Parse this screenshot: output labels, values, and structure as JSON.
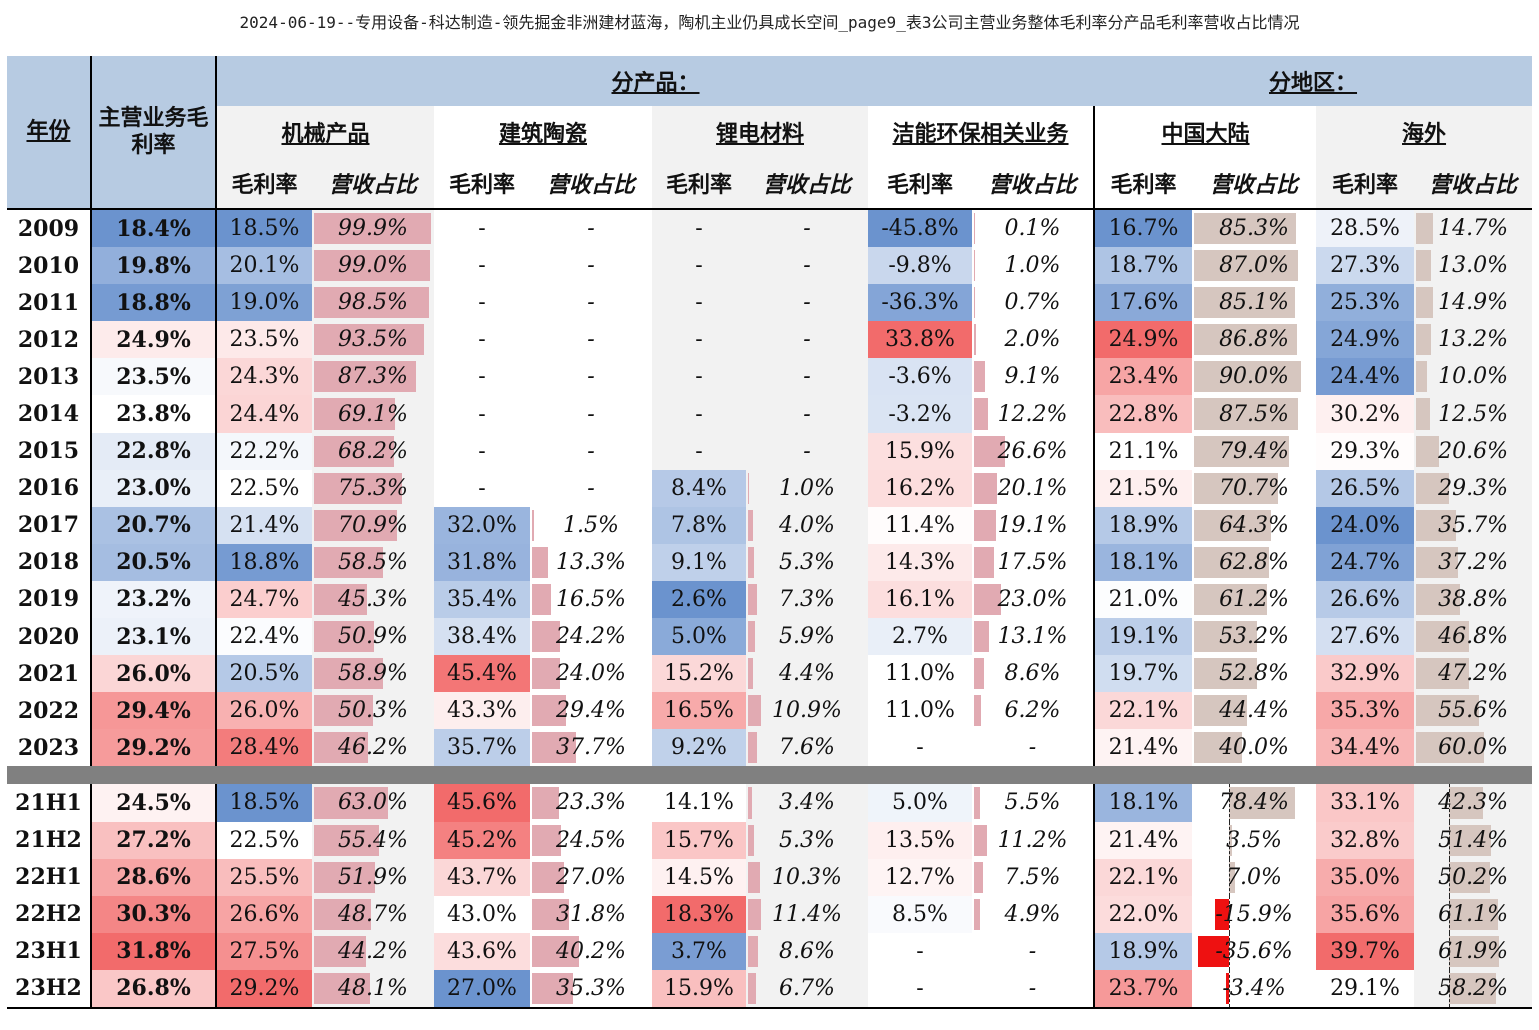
{
  "title": "2024-06-19--专用设备-科达制造-领先掘金非洲建材蓝海，陶机主业仍具成长空间_page9_表3公司主营业务整体毛利率分产品毛利率营收占比情况",
  "headers": {
    "year": "年份",
    "main_margin": "主营业务毛利率",
    "by_product": "分产品：",
    "by_region": "分地区：",
    "segments": [
      "机械产品",
      "建筑陶瓷",
      "锂电材料",
      "洁能环保相关业务",
      "中国大陆",
      "海外"
    ],
    "gross_margin": "毛利率",
    "revenue_share": "营收占比"
  },
  "columns": [
    "main",
    "mach_gm",
    "mach_sh",
    "cer_gm",
    "cer_sh",
    "li_gm",
    "li_sh",
    "env_gm",
    "env_sh",
    "cn_gm",
    "cn_sh",
    "os_gm",
    "os_sh"
  ],
  "annual_rows": [
    {
      "year": "2009",
      "main": "18.4%",
      "mach_gm": "18.5%",
      "mach_sh": "99.9%",
      "cer_gm": "-",
      "cer_sh": "-",
      "li_gm": "-",
      "li_sh": "-",
      "env_gm": "-45.8%",
      "env_sh": "0.1%",
      "cn_gm": "16.7%",
      "cn_sh": "85.3%",
      "os_gm": "28.5%",
      "os_sh": "14.7%"
    },
    {
      "year": "2010",
      "main": "19.8%",
      "mach_gm": "20.1%",
      "mach_sh": "99.0%",
      "cer_gm": "-",
      "cer_sh": "-",
      "li_gm": "-",
      "li_sh": "-",
      "env_gm": "-9.8%",
      "env_sh": "1.0%",
      "cn_gm": "18.7%",
      "cn_sh": "87.0%",
      "os_gm": "27.3%",
      "os_sh": "13.0%"
    },
    {
      "year": "2011",
      "main": "18.8%",
      "mach_gm": "19.0%",
      "mach_sh": "98.5%",
      "cer_gm": "-",
      "cer_sh": "-",
      "li_gm": "-",
      "li_sh": "-",
      "env_gm": "-36.3%",
      "env_sh": "0.7%",
      "cn_gm": "17.6%",
      "cn_sh": "85.1%",
      "os_gm": "25.3%",
      "os_sh": "14.9%"
    },
    {
      "year": "2012",
      "main": "24.9%",
      "mach_gm": "23.5%",
      "mach_sh": "93.5%",
      "cer_gm": "-",
      "cer_sh": "-",
      "li_gm": "-",
      "li_sh": "-",
      "env_gm": "33.8%",
      "env_sh": "2.0%",
      "cn_gm": "24.9%",
      "cn_sh": "86.8%",
      "os_gm": "24.9%",
      "os_sh": "13.2%"
    },
    {
      "year": "2013",
      "main": "23.5%",
      "mach_gm": "24.3%",
      "mach_sh": "87.3%",
      "cer_gm": "-",
      "cer_sh": "-",
      "li_gm": "-",
      "li_sh": "-",
      "env_gm": "-3.6%",
      "env_sh": "9.1%",
      "cn_gm": "23.4%",
      "cn_sh": "90.0%",
      "os_gm": "24.4%",
      "os_sh": "10.0%"
    },
    {
      "year": "2014",
      "main": "23.8%",
      "mach_gm": "24.4%",
      "mach_sh": "69.1%",
      "cer_gm": "-",
      "cer_sh": "-",
      "li_gm": "-",
      "li_sh": "-",
      "env_gm": "-3.2%",
      "env_sh": "12.2%",
      "cn_gm": "22.8%",
      "cn_sh": "87.5%",
      "os_gm": "30.2%",
      "os_sh": "12.5%"
    },
    {
      "year": "2015",
      "main": "22.8%",
      "mach_gm": "22.2%",
      "mach_sh": "68.2%",
      "cer_gm": "-",
      "cer_sh": "-",
      "li_gm": "-",
      "li_sh": "-",
      "env_gm": "15.9%",
      "env_sh": "26.6%",
      "cn_gm": "21.1%",
      "cn_sh": "79.4%",
      "os_gm": "29.3%",
      "os_sh": "20.6%"
    },
    {
      "year": "2016",
      "main": "23.0%",
      "mach_gm": "22.5%",
      "mach_sh": "75.3%",
      "cer_gm": "-",
      "cer_sh": "-",
      "li_gm": "8.4%",
      "li_sh": "1.0%",
      "env_gm": "16.2%",
      "env_sh": "20.1%",
      "cn_gm": "21.5%",
      "cn_sh": "70.7%",
      "os_gm": "26.5%",
      "os_sh": "29.3%"
    },
    {
      "year": "2017",
      "main": "20.7%",
      "mach_gm": "21.4%",
      "mach_sh": "70.9%",
      "cer_gm": "32.0%",
      "cer_sh": "1.5%",
      "li_gm": "7.8%",
      "li_sh": "4.0%",
      "env_gm": "11.4%",
      "env_sh": "19.1%",
      "cn_gm": "18.9%",
      "cn_sh": "64.3%",
      "os_gm": "24.0%",
      "os_sh": "35.7%"
    },
    {
      "year": "2018",
      "main": "20.5%",
      "mach_gm": "18.8%",
      "mach_sh": "58.5%",
      "cer_gm": "31.8%",
      "cer_sh": "13.3%",
      "li_gm": "9.1%",
      "li_sh": "5.3%",
      "env_gm": "14.3%",
      "env_sh": "17.5%",
      "cn_gm": "18.1%",
      "cn_sh": "62.8%",
      "os_gm": "24.7%",
      "os_sh": "37.2%"
    },
    {
      "year": "2019",
      "main": "23.2%",
      "mach_gm": "24.7%",
      "mach_sh": "45.3%",
      "cer_gm": "35.4%",
      "cer_sh": "16.5%",
      "li_gm": "2.6%",
      "li_sh": "7.3%",
      "env_gm": "16.1%",
      "env_sh": "23.0%",
      "cn_gm": "21.0%",
      "cn_sh": "61.2%",
      "os_gm": "26.6%",
      "os_sh": "38.8%"
    },
    {
      "year": "2020",
      "main": "23.1%",
      "mach_gm": "22.4%",
      "mach_sh": "50.9%",
      "cer_gm": "38.4%",
      "cer_sh": "24.2%",
      "li_gm": "5.0%",
      "li_sh": "5.9%",
      "env_gm": "2.7%",
      "env_sh": "13.1%",
      "cn_gm": "19.1%",
      "cn_sh": "53.2%",
      "os_gm": "27.6%",
      "os_sh": "46.8%"
    },
    {
      "year": "2021",
      "main": "26.0%",
      "mach_gm": "20.5%",
      "mach_sh": "58.9%",
      "cer_gm": "45.4%",
      "cer_sh": "24.0%",
      "li_gm": "15.2%",
      "li_sh": "4.4%",
      "env_gm": "11.0%",
      "env_sh": "8.6%",
      "cn_gm": "19.7%",
      "cn_sh": "52.8%",
      "os_gm": "32.9%",
      "os_sh": "47.2%"
    },
    {
      "year": "2022",
      "main": "29.4%",
      "mach_gm": "26.0%",
      "mach_sh": "50.3%",
      "cer_gm": "43.3%",
      "cer_sh": "29.4%",
      "li_gm": "16.5%",
      "li_sh": "10.9%",
      "env_gm": "11.0%",
      "env_sh": "6.2%",
      "cn_gm": "22.1%",
      "cn_sh": "44.4%",
      "os_gm": "35.3%",
      "os_sh": "55.6%"
    },
    {
      "year": "2023",
      "main": "29.2%",
      "mach_gm": "28.4%",
      "mach_sh": "46.2%",
      "cer_gm": "35.7%",
      "cer_sh": "37.7%",
      "li_gm": "9.2%",
      "li_sh": "7.6%",
      "env_gm": "-",
      "env_sh": "-",
      "cn_gm": "21.4%",
      "cn_sh": "40.0%",
      "os_gm": "34.4%",
      "os_sh": "60.0%"
    }
  ],
  "half_rows": [
    {
      "year": "21H1",
      "main": "24.5%",
      "mach_gm": "18.5%",
      "mach_sh": "63.0%",
      "cer_gm": "45.6%",
      "cer_sh": "23.3%",
      "li_gm": "14.1%",
      "li_sh": "3.4%",
      "env_gm": "5.0%",
      "env_sh": "5.5%",
      "cn_gm": "18.1%",
      "cn_sh": "78.4%",
      "os_gm": "33.1%",
      "os_sh": "42.3%"
    },
    {
      "year": "21H2",
      "main": "27.2%",
      "mach_gm": "22.5%",
      "mach_sh": "55.4%",
      "cer_gm": "45.2%",
      "cer_sh": "24.5%",
      "li_gm": "15.7%",
      "li_sh": "5.3%",
      "env_gm": "13.5%",
      "env_sh": "11.2%",
      "cn_gm": "21.4%",
      "cn_sh": "3.5%",
      "os_gm": "32.8%",
      "os_sh": "51.4%"
    },
    {
      "year": "22H1",
      "main": "28.6%",
      "mach_gm": "25.5%",
      "mach_sh": "51.9%",
      "cer_gm": "43.7%",
      "cer_sh": "27.0%",
      "li_gm": "14.5%",
      "li_sh": "10.3%",
      "env_gm": "12.7%",
      "env_sh": "7.5%",
      "cn_gm": "22.1%",
      "cn_sh": "7.0%",
      "os_gm": "35.0%",
      "os_sh": "50.2%"
    },
    {
      "year": "22H2",
      "main": "30.3%",
      "mach_gm": "26.6%",
      "mach_sh": "48.7%",
      "cer_gm": "43.0%",
      "cer_sh": "31.8%",
      "li_gm": "18.3%",
      "li_sh": "11.4%",
      "env_gm": "8.5%",
      "env_sh": "4.9%",
      "cn_gm": "22.0%",
      "cn_sh": "-15.9%",
      "os_gm": "35.6%",
      "os_sh": "61.1%"
    },
    {
      "year": "23H1",
      "main": "31.8%",
      "mach_gm": "27.5%",
      "mach_sh": "44.2%",
      "cer_gm": "43.6%",
      "cer_sh": "40.2%",
      "li_gm": "3.7%",
      "li_sh": "8.6%",
      "env_gm": "-",
      "env_sh": "-",
      "cn_gm": "18.9%",
      "cn_sh": "-35.6%",
      "os_gm": "39.7%",
      "os_sh": "61.9%"
    },
    {
      "year": "23H2",
      "main": "26.8%",
      "mach_gm": "29.2%",
      "mach_sh": "48.1%",
      "cer_gm": "27.0%",
      "cer_sh": "35.3%",
      "li_gm": "15.9%",
      "li_sh": "6.7%",
      "env_gm": "-",
      "env_sh": "-",
      "cn_gm": "23.7%",
      "cn_sh": "-3.4%",
      "os_gm": "29.1%",
      "os_sh": "58.2%"
    }
  ],
  "colors": {
    "header_blue": "#b7cbe2",
    "product_grey": "#f2f2f2",
    "share_bar_pink": "#e1aab2",
    "share_bar_tan": "#d6c6bf",
    "negative_bar_red": "#ee1111",
    "separator_grey": "#808080",
    "scale_red": "#f05a5a",
    "scale_blue": "#5b87c9"
  }
}
